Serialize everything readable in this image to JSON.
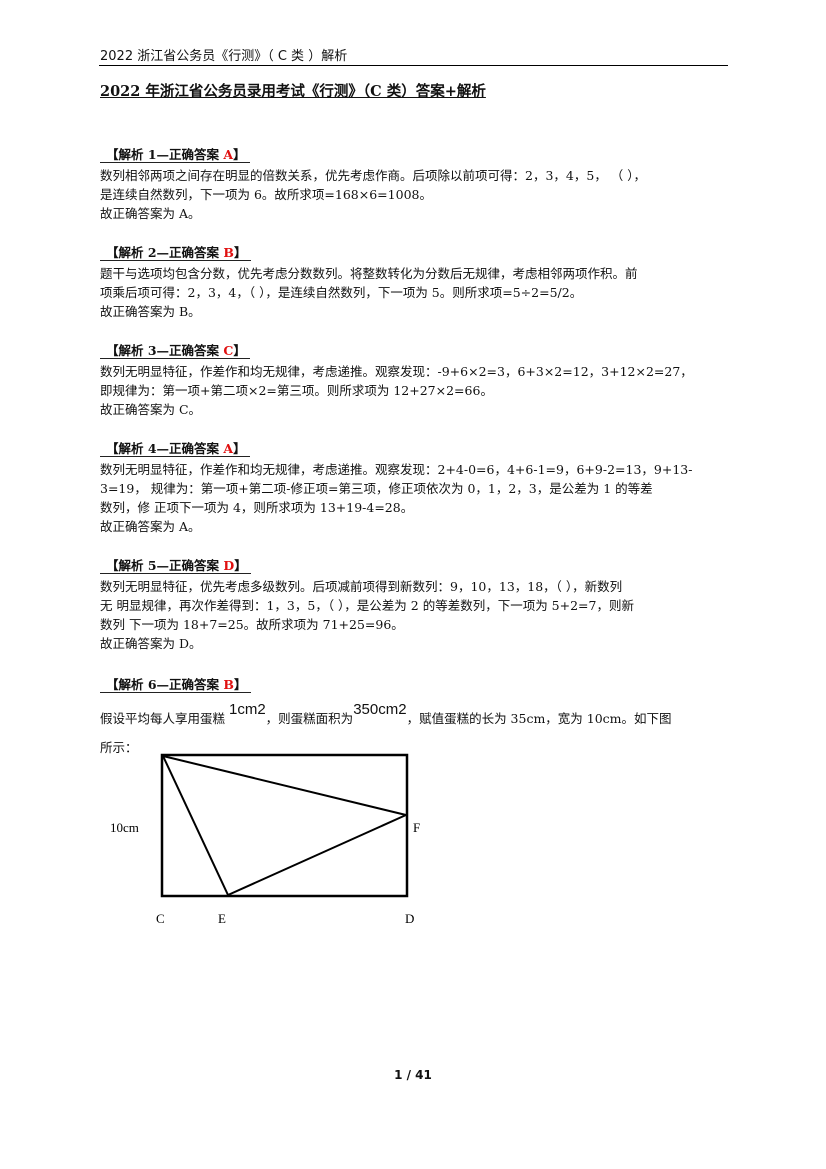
{
  "running_header": "2022 浙江省公务员《行测》（ C 类 ）解析",
  "title": "2022 年浙江省公务员录用考试《行测》（C 类）答案+解析",
  "sections": [
    {
      "label": "【解析 1—正确答案 ",
      "answer": "A",
      "close": "】",
      "lines": [
        "数列相邻两项之间存在明显的倍数关系，优先考虑作商。后项除以前项可得：2，3，4，5， （ ），",
        "是连续自然数列，下一项为 6。故所求项=168×6=1008。",
        "故正确答案为 A。"
      ]
    },
    {
      "label": "【解析 2—正确答案 ",
      "answer": "B",
      "close": "】",
      "lines": [
        "题干与选项均包含分数，优先考虑分数数列。将整数转化为分数后无规律，考虑相邻两项作积。前",
        "项乘后项可得：2，3，4，（ ），是连续自然数列，下一项为 5。则所求项=5÷2=5/2。",
        "故正确答案为 B。"
      ]
    },
    {
      "label": "【解析 3—正确答案 ",
      "answer": "C",
      "close": "】",
      "lines": [
        "数列无明显特征，作差作和均无规律，考虑递推。观察发现：-9+6×2=3，6+3×2=12，3+12×2=27，",
        "即规律为：第一项+第二项×2=第三项。则所求项为 12+27×2=66。",
        "故正确答案为 C。"
      ]
    },
    {
      "label": "【解析 4—正确答案 ",
      "answer": "A",
      "close": "】",
      "lines": [
        "数列无明显特征，作差作和均无规律，考虑递推。观察发现：2+4-0=6，4+6-1=9，6+9-2=13，9+13-",
        "3=19， 规律为：第一项+第二项-修正项=第三项，修正项依次为 0，1，2，3，是公差为 1 的等差",
        "数列，修 正项下一项为 4，则所求项为 13+19-4=28。",
        "故正确答案为 A。"
      ]
    },
    {
      "label": "【解析 5—正确答案 ",
      "answer": "D",
      "close": "】",
      "lines": [
        "数列无明显特征，优先考虑多级数列。后项减前项得到新数列：9，10，13，18，（ ），新数列",
        "无 明显规律，再次作差得到：1，3，5，（ ），是公差为 2 的等差数列，下一项为 5+2=7，则新",
        "数列 下一项为 18+7=25。故所求项为 71+25=96。",
        "故正确答案为 D。"
      ]
    },
    {
      "label": "【解析 6—正确答案 ",
      "answer": "B",
      "close": "】"
    }
  ],
  "section6": {
    "p1": "假设平均每人享用蛋糕 ",
    "sup1": "1cm2",
    "p2": "，则蛋糕面积为",
    "sup2": "350cm2",
    "p3": "，赋值蛋糕的长为 35cm，宽为 10cm。如下图",
    "line2": "所示："
  },
  "figure": {
    "width_label": "10cm",
    "points": {
      "C": "C",
      "E": "E",
      "D": "D",
      "F": "F"
    }
  },
  "footer": "1 / 41",
  "colors": {
    "answer": "#e01010"
  }
}
